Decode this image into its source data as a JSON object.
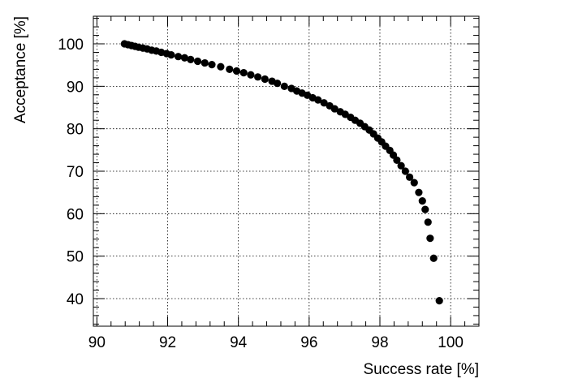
{
  "chart_data": {
    "type": "scatter",
    "title": "",
    "xlabel": "Success rate [%]",
    "ylabel": "Acceptance [%]",
    "xlim": [
      89.9,
      100.8
    ],
    "ylim": [
      33.5,
      106.5
    ],
    "xticks": [
      90,
      92,
      94,
      96,
      98,
      100
    ],
    "yticks": [
      40,
      50,
      60,
      70,
      80,
      90,
      100
    ],
    "xtick_labels": [
      "90",
      "92",
      "94",
      "96",
      "98",
      "100"
    ],
    "ytick_labels": [
      "40",
      "50",
      "60",
      "70",
      "80",
      "90",
      "100"
    ],
    "grid": true,
    "grid_style": "dotted",
    "marker": "filled-circle",
    "marker_color": "#000000",
    "series": [
      {
        "points": [
          [
            90.78,
            100.0
          ],
          [
            90.88,
            99.8
          ],
          [
            90.98,
            99.6
          ],
          [
            91.08,
            99.4
          ],
          [
            91.18,
            99.2
          ],
          [
            91.3,
            99.0
          ],
          [
            91.42,
            98.8
          ],
          [
            91.55,
            98.5
          ],
          [
            91.68,
            98.3
          ],
          [
            91.82,
            98.0
          ],
          [
            91.97,
            97.7
          ],
          [
            92.1,
            97.4
          ],
          [
            92.3,
            97.0
          ],
          [
            92.48,
            96.7
          ],
          [
            92.65,
            96.3
          ],
          [
            92.85,
            95.9
          ],
          [
            93.05,
            95.5
          ],
          [
            93.25,
            95.1
          ],
          [
            93.5,
            94.6
          ],
          [
            93.75,
            94.0
          ],
          [
            93.95,
            93.6
          ],
          [
            94.15,
            93.2
          ],
          [
            94.35,
            92.7
          ],
          [
            94.55,
            92.2
          ],
          [
            94.75,
            91.7
          ],
          [
            94.95,
            91.2
          ],
          [
            95.1,
            90.7
          ],
          [
            95.3,
            90.0
          ],
          [
            95.5,
            89.5
          ],
          [
            95.65,
            88.9
          ],
          [
            95.8,
            88.4
          ],
          [
            95.95,
            87.9
          ],
          [
            96.1,
            87.3
          ],
          [
            96.25,
            86.8
          ],
          [
            96.42,
            86.1
          ],
          [
            96.58,
            85.4
          ],
          [
            96.72,
            84.7
          ],
          [
            96.88,
            84.0
          ],
          [
            97.02,
            83.4
          ],
          [
            97.17,
            82.7
          ],
          [
            97.3,
            82.0
          ],
          [
            97.44,
            81.3
          ],
          [
            97.57,
            80.5
          ],
          [
            97.7,
            79.7
          ],
          [
            97.82,
            78.8
          ],
          [
            97.94,
            77.8
          ],
          [
            98.05,
            76.9
          ],
          [
            98.16,
            75.9
          ],
          [
            98.28,
            74.9
          ],
          [
            98.38,
            73.8
          ],
          [
            98.48,
            72.6
          ],
          [
            98.6,
            71.3
          ],
          [
            98.72,
            70.0
          ],
          [
            98.84,
            68.6
          ],
          [
            98.97,
            67.3
          ],
          [
            99.1,
            65.0
          ],
          [
            99.2,
            63.0
          ],
          [
            99.28,
            61.0
          ],
          [
            99.36,
            58.0
          ],
          [
            99.42,
            54.2
          ],
          [
            99.52,
            49.5
          ],
          [
            99.68,
            39.5
          ]
        ]
      }
    ]
  }
}
